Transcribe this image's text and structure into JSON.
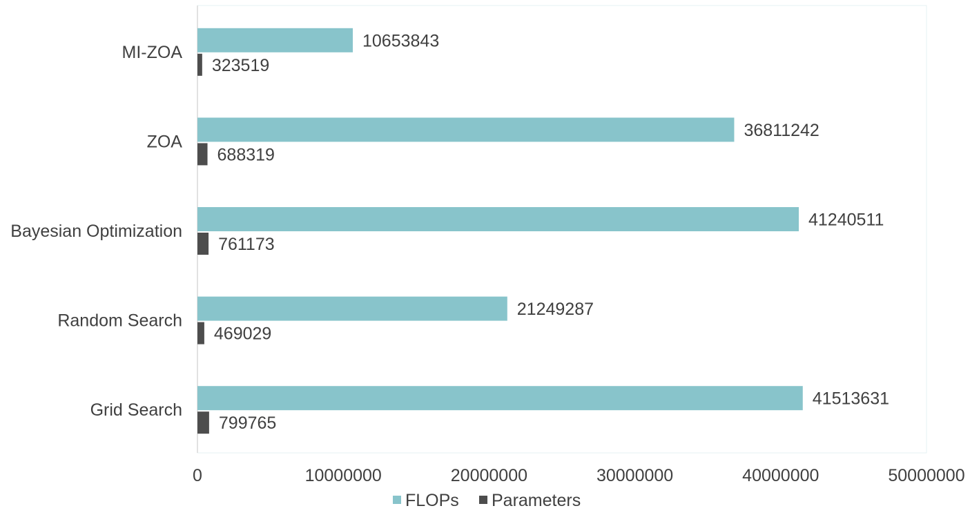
{
  "chart_data": {
    "type": "bar",
    "orientation": "horizontal",
    "title": "",
    "xlabel": "",
    "ylabel": "",
    "categories": [
      "MI-ZOA",
      "ZOA",
      "Bayesian Optimization",
      "Random Search",
      "Grid Search"
    ],
    "series": [
      {
        "name": "FLOPs",
        "color": "#88c4cb",
        "values": [
          10653843,
          36811242,
          41240511,
          21249287,
          41513631
        ],
        "labels": [
          "10653843",
          "36811242",
          "41240511",
          "21249287",
          "41513631"
        ]
      },
      {
        "name": "Parameters",
        "color": "#4d4d4d",
        "values": [
          323519,
          688319,
          761173,
          469029,
          799765
        ],
        "labels": [
          "323519",
          "688319",
          "761173",
          "469029",
          "799765"
        ]
      }
    ],
    "xlim": [
      0,
      50000000
    ],
    "xticks": [
      0,
      10000000,
      20000000,
      30000000,
      40000000,
      50000000
    ],
    "xtick_labels": [
      "0",
      "10000000",
      "20000000",
      "30000000",
      "40000000",
      "50000000"
    ],
    "grid": false,
    "legend_position": "bottom"
  }
}
